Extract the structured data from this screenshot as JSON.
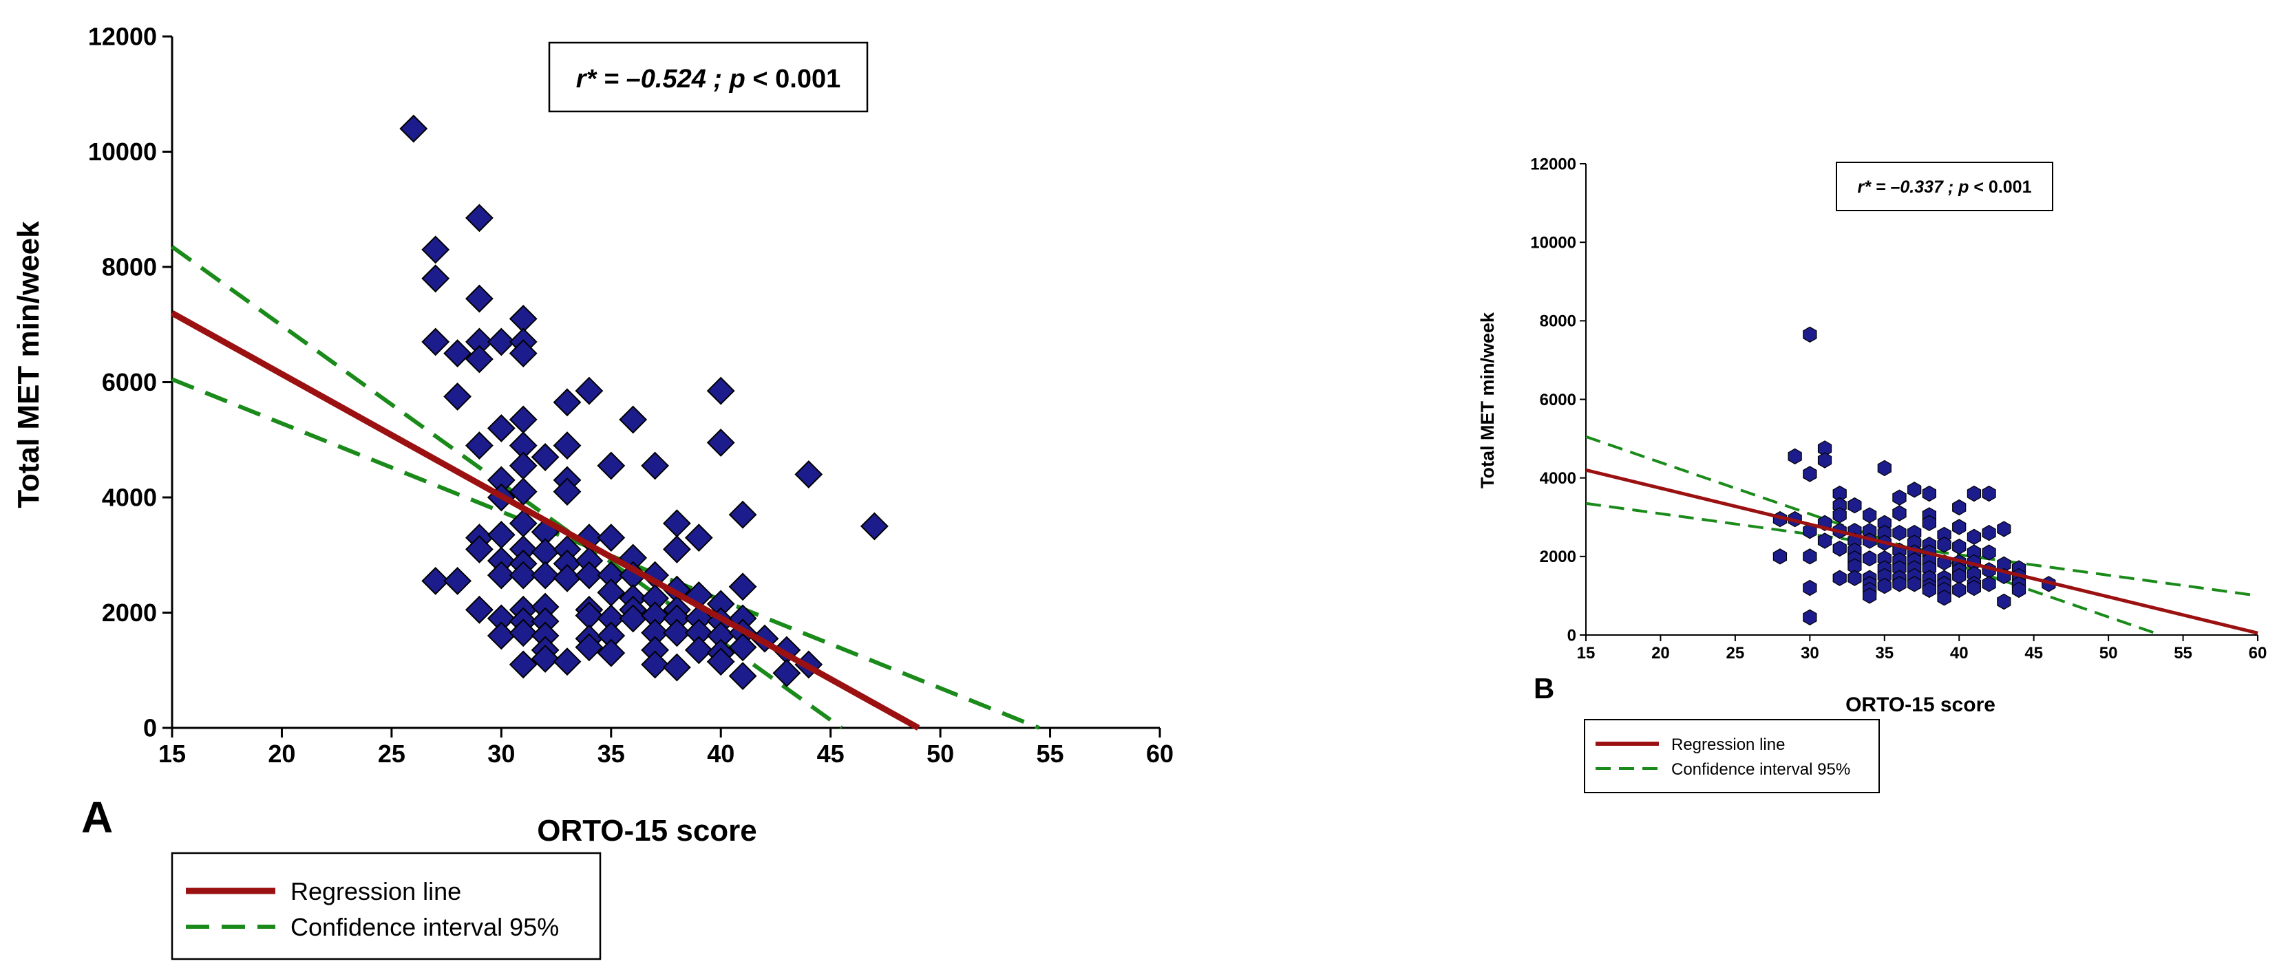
{
  "chart_data": [
    {
      "panel_label": "A",
      "type": "scatter",
      "xlabel": "ORTO-15 score",
      "ylabel": "Total MET min/week",
      "xlim": [
        15,
        60
      ],
      "ylim": [
        0,
        12000
      ],
      "xticks": [
        15,
        20,
        25,
        30,
        35,
        40,
        45,
        50,
        55,
        60
      ],
      "yticks": [
        0,
        2000,
        4000,
        6000,
        8000,
        10000,
        12000
      ],
      "marker": "diamond",
      "marker_color": "#1c1c8c",
      "regression_color": "#9b1111",
      "ci_color": "#1a8a1a",
      "annotation": {
        "r_label": "r*",
        "r_value": " = –0.524 ; ",
        "p_label": "p",
        "p_value": " < 0.001"
      },
      "legend": {
        "placement": "bottom-left",
        "entries": [
          "Regression line",
          "Confidence interval 95%"
        ]
      },
      "regression_line": [
        [
          15,
          7200
        ],
        [
          49,
          0
        ]
      ],
      "ci_upper": [
        [
          15,
          8350
        ],
        [
          45.5,
          0
        ]
      ],
      "ci_lower": [
        [
          15,
          6050
        ],
        [
          54.5,
          0
        ]
      ],
      "points": [
        [
          26,
          10400
        ],
        [
          29,
          8850
        ],
        [
          27,
          8300
        ],
        [
          27,
          7800
        ],
        [
          29,
          7450
        ],
        [
          31,
          7100
        ],
        [
          27,
          6700
        ],
        [
          29,
          6700
        ],
        [
          30,
          6700
        ],
        [
          31,
          6700
        ],
        [
          28,
          6500
        ],
        [
          29,
          6400
        ],
        [
          31,
          6500
        ],
        [
          28,
          5750
        ],
        [
          34,
          5850
        ],
        [
          40,
          5850
        ],
        [
          33,
          5650
        ],
        [
          36,
          5350
        ],
        [
          31,
          5350
        ],
        [
          30,
          5200
        ],
        [
          29,
          4900
        ],
        [
          31,
          4900
        ],
        [
          33,
          4900
        ],
        [
          40,
          4950
        ],
        [
          32,
          4700
        ],
        [
          31,
          4550
        ],
        [
          35,
          4550
        ],
        [
          37,
          4550
        ],
        [
          44,
          4400
        ],
        [
          30,
          4300
        ],
        [
          33,
          4300
        ],
        [
          33,
          4100
        ],
        [
          31,
          4100
        ],
        [
          30,
          4000
        ],
        [
          41,
          3700
        ],
        [
          47,
          3500
        ],
        [
          31,
          3550
        ],
        [
          38,
          3550
        ],
        [
          32,
          3400
        ],
        [
          29,
          3300
        ],
        [
          30,
          3350
        ],
        [
          34,
          3300
        ],
        [
          35,
          3300
        ],
        [
          39,
          3300
        ],
        [
          29,
          3100
        ],
        [
          31,
          3100
        ],
        [
          32,
          3050
        ],
        [
          33,
          3100
        ],
        [
          38,
          3100
        ],
        [
          30,
          2900
        ],
        [
          31,
          2850
        ],
        [
          33,
          2850
        ],
        [
          34,
          2900
        ],
        [
          36,
          2950
        ],
        [
          27,
          2550
        ],
        [
          28,
          2550
        ],
        [
          30,
          2650
        ],
        [
          31,
          2650
        ],
        [
          32,
          2650
        ],
        [
          33,
          2600
        ],
        [
          34,
          2650
        ],
        [
          35,
          2650
        ],
        [
          36,
          2650
        ],
        [
          37,
          2650
        ],
        [
          38,
          2400
        ],
        [
          41,
          2450
        ],
        [
          35,
          2350
        ],
        [
          36,
          2250
        ],
        [
          37,
          2250
        ],
        [
          39,
          2300
        ],
        [
          29,
          2050
        ],
        [
          31,
          2050
        ],
        [
          32,
          2100
        ],
        [
          34,
          2050
        ],
        [
          36,
          2050
        ],
        [
          38,
          2050
        ],
        [
          40,
          2150
        ],
        [
          30,
          1900
        ],
        [
          31,
          1850
        ],
        [
          32,
          1850
        ],
        [
          34,
          1950
        ],
        [
          35,
          1900
        ],
        [
          36,
          1900
        ],
        [
          37,
          1950
        ],
        [
          38,
          1900
        ],
        [
          39,
          1900
        ],
        [
          40,
          1850
        ],
        [
          41,
          1900
        ],
        [
          30,
          1600
        ],
        [
          31,
          1650
        ],
        [
          32,
          1600
        ],
        [
          34,
          1550
        ],
        [
          35,
          1600
        ],
        [
          37,
          1650
        ],
        [
          38,
          1650
        ],
        [
          39,
          1650
        ],
        [
          40,
          1600
        ],
        [
          41,
          1650
        ],
        [
          42,
          1550
        ],
        [
          32,
          1350
        ],
        [
          34,
          1400
        ],
        [
          35,
          1300
        ],
        [
          37,
          1350
        ],
        [
          39,
          1350
        ],
        [
          40,
          1300
        ],
        [
          41,
          1400
        ],
        [
          43,
          1350
        ],
        [
          31,
          1100
        ],
        [
          32,
          1200
        ],
        [
          33,
          1150
        ],
        [
          37,
          1100
        ],
        [
          38,
          1050
        ],
        [
          40,
          1150
        ],
        [
          41,
          900
        ],
        [
          43,
          950
        ],
        [
          44,
          1100
        ]
      ]
    },
    {
      "panel_label": "B",
      "type": "scatter",
      "xlabel": "ORTO-15 score",
      "ylabel": "Total MET min/week",
      "xlim": [
        15,
        60
      ],
      "ylim": [
        0,
        12000
      ],
      "xticks": [
        15,
        20,
        25,
        30,
        35,
        40,
        45,
        50,
        55,
        60
      ],
      "yticks": [
        0,
        2000,
        4000,
        6000,
        8000,
        10000,
        12000
      ],
      "marker": "hexagon",
      "marker_color": "#1c1c8c",
      "regression_color": "#9b1111",
      "ci_color": "#1a8a1a",
      "annotation": {
        "r_label": "r*",
        "r_value": " = –0.337 ; ",
        "p_label": "p",
        "p_value": " < 0.001"
      },
      "legend": {
        "placement": "bottom-left",
        "entries": [
          "Regression line",
          "Confidence interval 95%"
        ]
      },
      "regression_line": [
        [
          15,
          4200
        ],
        [
          60,
          50
        ]
      ],
      "ci_upper": [
        [
          15,
          5050
        ],
        [
          53.5,
          0
        ]
      ],
      "ci_lower": [
        [
          15,
          3350
        ],
        [
          60,
          1000
        ]
      ],
      "points": [
        [
          30,
          7650
        ],
        [
          31,
          4750
        ],
        [
          29,
          4550
        ],
        [
          31,
          4450
        ],
        [
          35,
          4250
        ],
        [
          30,
          4100
        ],
        [
          32,
          3600
        ],
        [
          37,
          3700
        ],
        [
          38,
          3600
        ],
        [
          36,
          3500
        ],
        [
          41,
          3600
        ],
        [
          42,
          3600
        ],
        [
          32,
          3300
        ],
        [
          33,
          3300
        ],
        [
          40,
          3250
        ],
        [
          32,
          3050
        ],
        [
          34,
          3050
        ],
        [
          36,
          3100
        ],
        [
          38,
          3050
        ],
        [
          28,
          2950
        ],
        [
          29,
          2950
        ],
        [
          31,
          2850
        ],
        [
          35,
          2850
        ],
        [
          38,
          2850
        ],
        [
          40,
          2750
        ],
        [
          43,
          2700
        ],
        [
          30,
          2650
        ],
        [
          32,
          2650
        ],
        [
          33,
          2650
        ],
        [
          34,
          2650
        ],
        [
          35,
          2600
        ],
        [
          36,
          2600
        ],
        [
          37,
          2600
        ],
        [
          39,
          2550
        ],
        [
          41,
          2500
        ],
        [
          42,
          2600
        ],
        [
          31,
          2400
        ],
        [
          33,
          2400
        ],
        [
          34,
          2400
        ],
        [
          35,
          2350
        ],
        [
          37,
          2350
        ],
        [
          38,
          2300
        ],
        [
          39,
          2300
        ],
        [
          40,
          2250
        ],
        [
          32,
          2200
        ],
        [
          33,
          2150
        ],
        [
          36,
          2150
        ],
        [
          37,
          2100
        ],
        [
          38,
          2100
        ],
        [
          41,
          2100
        ],
        [
          42,
          2100
        ],
        [
          28,
          2000
        ],
        [
          30,
          2000
        ],
        [
          33,
          1950
        ],
        [
          34,
          1950
        ],
        [
          35,
          1950
        ],
        [
          36,
          1900
        ],
        [
          37,
          1900
        ],
        [
          38,
          1900
        ],
        [
          39,
          1850
        ],
        [
          40,
          1850
        ],
        [
          41,
          1850
        ],
        [
          43,
          1800
        ],
        [
          33,
          1750
        ],
        [
          35,
          1700
        ],
        [
          36,
          1700
        ],
        [
          37,
          1700
        ],
        [
          38,
          1700
        ],
        [
          40,
          1650
        ],
        [
          42,
          1650
        ],
        [
          44,
          1700
        ],
        [
          32,
          1450
        ],
        [
          33,
          1450
        ],
        [
          34,
          1450
        ],
        [
          35,
          1500
        ],
        [
          36,
          1450
        ],
        [
          37,
          1500
        ],
        [
          38,
          1450
        ],
        [
          39,
          1450
        ],
        [
          40,
          1500
        ],
        [
          41,
          1550
        ],
        [
          43,
          1500
        ],
        [
          44,
          1500
        ],
        [
          34,
          1300
        ],
        [
          35,
          1250
        ],
        [
          36,
          1300
        ],
        [
          37,
          1300
        ],
        [
          38,
          1250
        ],
        [
          39,
          1300
        ],
        [
          41,
          1300
        ],
        [
          42,
          1300
        ],
        [
          44,
          1300
        ],
        [
          46,
          1300
        ],
        [
          30,
          1200
        ],
        [
          34,
          1150
        ],
        [
          38,
          1150
        ],
        [
          39,
          1150
        ],
        [
          40,
          1150
        ],
        [
          41,
          1200
        ],
        [
          44,
          1150
        ],
        [
          34,
          1000
        ],
        [
          39,
          950
        ],
        [
          43,
          850
        ],
        [
          30,
          450
        ]
      ]
    }
  ]
}
